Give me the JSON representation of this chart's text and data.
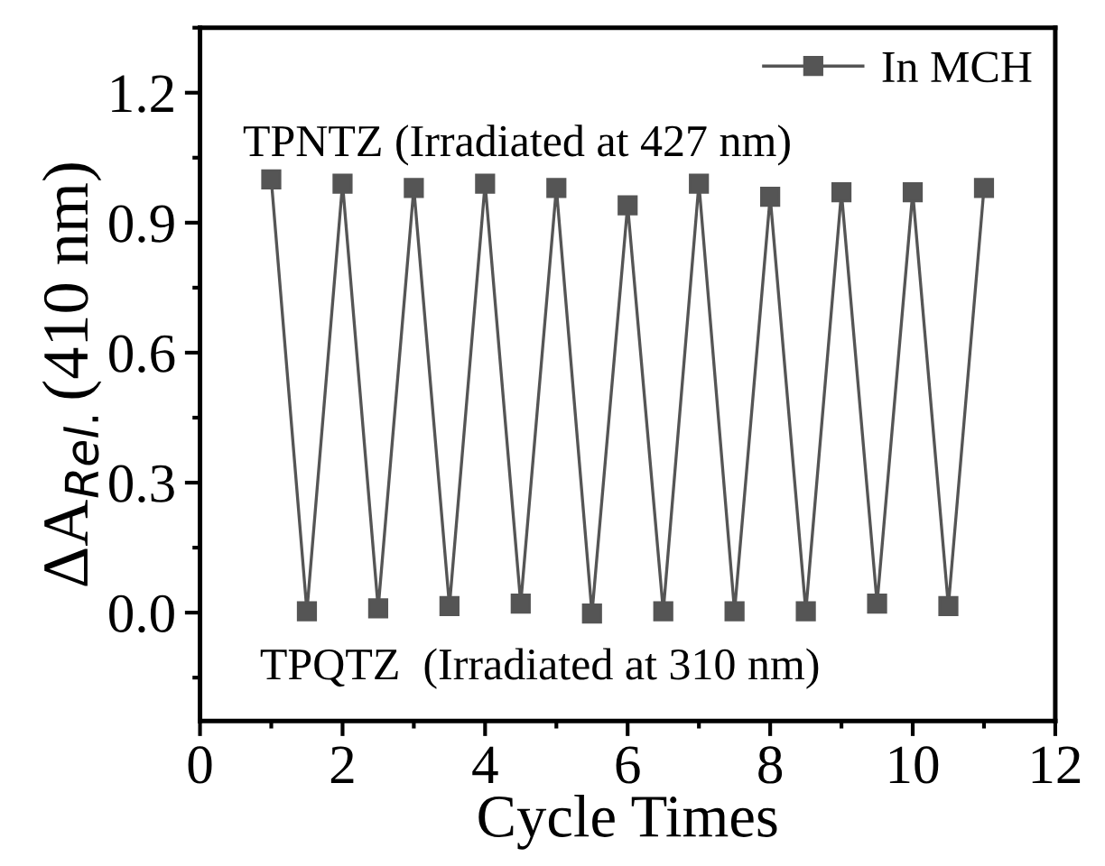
{
  "chart_data": {
    "type": "line",
    "xlabel": "Cycle Times",
    "ylabel": "ΔA$_{Rel.}$(410 nm)",
    "x": [
      1,
      1.5,
      2,
      2.5,
      3,
      3.5,
      4,
      4.5,
      5,
      5.5,
      6,
      6.5,
      7,
      7.5,
      8,
      8.5,
      9,
      9.5,
      10,
      10.5,
      11
    ],
    "series": [
      {
        "name": "In MCH",
        "color": "#555555",
        "values": [
          1.0,
          0.003,
          0.99,
          0.01,
          0.98,
          0.015,
          0.99,
          0.021,
          0.98,
          -0.002,
          0.94,
          0.003,
          0.99,
          0.003,
          0.96,
          0.003,
          0.97,
          0.021,
          0.97,
          0.015,
          0.98
        ]
      }
    ],
    "xlim": [
      0,
      12
    ],
    "xticks": [
      0,
      2,
      4,
      6,
      8,
      10,
      12
    ],
    "ylim": [
      -0.25,
      1.35
    ],
    "yticks": [
      {
        "value": 0,
        "label": "0.0"
      },
      0.3,
      0.6,
      0.9,
      1.2
    ],
    "marker": "square",
    "line_style": "solid",
    "legend": "top right",
    "grid": false,
    "annotations": [
      "TPNTZ (Irradiated at 427 nm)",
      "TPQTZ  (Irradiated at 310 nm)"
    ]
  }
}
